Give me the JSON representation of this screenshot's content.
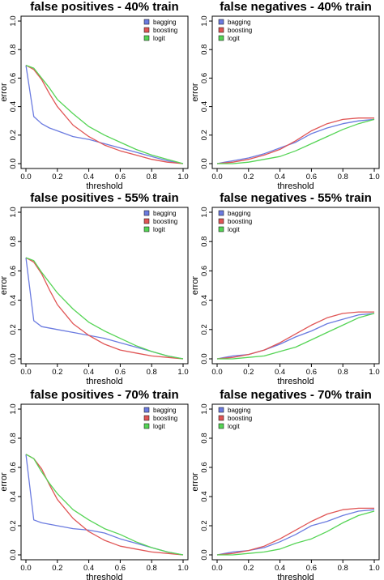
{
  "chart_data": [
    {
      "type": "line",
      "title": "false positives - 40% train",
      "xlabel": "threshold",
      "ylabel": "error",
      "xlim": [
        0,
        1
      ],
      "ylim": [
        0,
        1
      ],
      "xticks": [
        "0.0",
        "0.2",
        "0.4",
        "0.6",
        "0.8",
        "1.0"
      ],
      "yticks": [
        "0.0",
        "0.2",
        "0.4",
        "0.6",
        "0.8",
        "1.0"
      ],
      "legend": "top-right",
      "grid": false,
      "series": [
        {
          "name": "bagging",
          "color": "#6b7be0",
          "x": [
            0.0,
            0.05,
            0.1,
            0.15,
            0.2,
            0.3,
            0.4,
            0.5,
            0.6,
            0.7,
            0.8,
            0.9,
            1.0
          ],
          "y": [
            0.69,
            0.33,
            0.28,
            0.25,
            0.23,
            0.19,
            0.17,
            0.14,
            0.11,
            0.08,
            0.05,
            0.02,
            0.0
          ]
        },
        {
          "name": "boosting",
          "color": "#e05555",
          "x": [
            0.0,
            0.05,
            0.1,
            0.15,
            0.2,
            0.3,
            0.4,
            0.5,
            0.6,
            0.7,
            0.8,
            0.9,
            1.0
          ],
          "y": [
            0.69,
            0.66,
            0.59,
            0.49,
            0.4,
            0.27,
            0.19,
            0.13,
            0.09,
            0.06,
            0.03,
            0.01,
            0.0
          ]
        },
        {
          "name": "logit",
          "color": "#55d455",
          "x": [
            0.0,
            0.05,
            0.1,
            0.15,
            0.2,
            0.3,
            0.4,
            0.5,
            0.6,
            0.7,
            0.8,
            0.9,
            1.0
          ],
          "y": [
            0.69,
            0.67,
            0.6,
            0.53,
            0.45,
            0.35,
            0.26,
            0.2,
            0.15,
            0.1,
            0.06,
            0.03,
            0.0
          ]
        }
      ]
    },
    {
      "type": "line",
      "title": "false negatives - 40% train",
      "xlabel": "threshold",
      "ylabel": "error",
      "xlim": [
        0,
        1
      ],
      "ylim": [
        0,
        1
      ],
      "xticks": [
        "0.0",
        "0.2",
        "0.4",
        "0.6",
        "0.8",
        "1.0"
      ],
      "yticks": [
        "0.0",
        "0.2",
        "0.4",
        "0.6",
        "0.8",
        "1.0"
      ],
      "legend": "top-left",
      "grid": false,
      "series": [
        {
          "name": "bagging",
          "color": "#6b7be0",
          "x": [
            0.0,
            0.05,
            0.1,
            0.2,
            0.3,
            0.35,
            0.4,
            0.5,
            0.6,
            0.7,
            0.8,
            0.9,
            1.0
          ],
          "y": [
            0.0,
            0.01,
            0.02,
            0.04,
            0.07,
            0.09,
            0.11,
            0.15,
            0.21,
            0.25,
            0.28,
            0.3,
            0.31
          ]
        },
        {
          "name": "boosting",
          "color": "#e05555",
          "x": [
            0.0,
            0.1,
            0.2,
            0.3,
            0.4,
            0.5,
            0.6,
            0.7,
            0.8,
            0.9,
            1.0
          ],
          "y": [
            0.0,
            0.01,
            0.03,
            0.06,
            0.1,
            0.16,
            0.23,
            0.28,
            0.31,
            0.32,
            0.32
          ]
        },
        {
          "name": "logit",
          "color": "#55d455",
          "x": [
            0.0,
            0.1,
            0.2,
            0.3,
            0.4,
            0.5,
            0.6,
            0.7,
            0.8,
            0.9,
            1.0
          ],
          "y": [
            0.0,
            0.0,
            0.01,
            0.03,
            0.05,
            0.09,
            0.14,
            0.19,
            0.24,
            0.28,
            0.31
          ]
        }
      ]
    },
    {
      "type": "line",
      "title": "false positives - 55% train",
      "xlabel": "threshold",
      "ylabel": "error",
      "xlim": [
        0,
        1
      ],
      "ylim": [
        0,
        1
      ],
      "xticks": [
        "0.0",
        "0.2",
        "0.4",
        "0.6",
        "0.8",
        "1.0"
      ],
      "yticks": [
        "0.0",
        "0.2",
        "0.4",
        "0.6",
        "0.8",
        "1.0"
      ],
      "legend": "top-right",
      "grid": false,
      "series": [
        {
          "name": "bagging",
          "color": "#6b7be0",
          "x": [
            0.0,
            0.05,
            0.1,
            0.2,
            0.3,
            0.4,
            0.5,
            0.6,
            0.7,
            0.8,
            0.9,
            1.0
          ],
          "y": [
            0.69,
            0.26,
            0.22,
            0.2,
            0.18,
            0.16,
            0.14,
            0.11,
            0.08,
            0.05,
            0.02,
            0.0
          ]
        },
        {
          "name": "boosting",
          "color": "#e05555",
          "x": [
            0.0,
            0.05,
            0.1,
            0.15,
            0.2,
            0.3,
            0.4,
            0.5,
            0.6,
            0.7,
            0.8,
            0.9,
            1.0
          ],
          "y": [
            0.69,
            0.66,
            0.58,
            0.47,
            0.37,
            0.24,
            0.16,
            0.1,
            0.06,
            0.04,
            0.02,
            0.01,
            0.0
          ]
        },
        {
          "name": "logit",
          "color": "#55d455",
          "x": [
            0.0,
            0.05,
            0.1,
            0.15,
            0.2,
            0.3,
            0.4,
            0.5,
            0.6,
            0.7,
            0.8,
            0.9,
            1.0
          ],
          "y": [
            0.69,
            0.67,
            0.59,
            0.52,
            0.45,
            0.34,
            0.25,
            0.19,
            0.14,
            0.09,
            0.05,
            0.02,
            0.0
          ]
        }
      ]
    },
    {
      "type": "line",
      "title": "false negatives - 55% train",
      "xlabel": "threshold",
      "ylabel": "error",
      "xlim": [
        0,
        1
      ],
      "ylim": [
        0,
        1
      ],
      "xticks": [
        "0.0",
        "0.2",
        "0.4",
        "0.6",
        "0.8",
        "1.0"
      ],
      "yticks": [
        "0.0",
        "0.2",
        "0.4",
        "0.6",
        "0.8",
        "1.0"
      ],
      "legend": "top-left",
      "grid": false,
      "series": [
        {
          "name": "bagging",
          "color": "#6b7be0",
          "x": [
            0.0,
            0.05,
            0.1,
            0.2,
            0.3,
            0.4,
            0.5,
            0.6,
            0.7,
            0.8,
            0.9,
            1.0
          ],
          "y": [
            0.0,
            0.01,
            0.02,
            0.03,
            0.06,
            0.1,
            0.15,
            0.19,
            0.24,
            0.27,
            0.3,
            0.31
          ]
        },
        {
          "name": "boosting",
          "color": "#e05555",
          "x": [
            0.0,
            0.1,
            0.2,
            0.3,
            0.4,
            0.5,
            0.6,
            0.7,
            0.8,
            0.9,
            1.0
          ],
          "y": [
            0.0,
            0.01,
            0.03,
            0.06,
            0.11,
            0.17,
            0.23,
            0.28,
            0.31,
            0.32,
            0.32
          ]
        },
        {
          "name": "logit",
          "color": "#55d455",
          "x": [
            0.0,
            0.1,
            0.2,
            0.3,
            0.4,
            0.5,
            0.6,
            0.7,
            0.8,
            0.9,
            1.0
          ],
          "y": [
            0.0,
            0.0,
            0.01,
            0.02,
            0.05,
            0.08,
            0.13,
            0.18,
            0.23,
            0.28,
            0.31
          ]
        }
      ]
    },
    {
      "type": "line",
      "title": "false positives - 70% train",
      "xlabel": "threshold",
      "ylabel": "error",
      "xlim": [
        0,
        1
      ],
      "ylim": [
        0,
        1
      ],
      "xticks": [
        "0.0",
        "0.2",
        "0.4",
        "0.6",
        "0.8",
        "1.0"
      ],
      "yticks": [
        "0.0",
        "0.2",
        "0.4",
        "0.6",
        "0.8",
        "1.0"
      ],
      "legend": "top-right",
      "grid": false,
      "series": [
        {
          "name": "bagging",
          "color": "#6b7be0",
          "x": [
            0.0,
            0.05,
            0.1,
            0.2,
            0.3,
            0.4,
            0.5,
            0.6,
            0.7,
            0.8,
            0.9,
            1.0
          ],
          "y": [
            0.69,
            0.24,
            0.22,
            0.2,
            0.18,
            0.17,
            0.15,
            0.11,
            0.08,
            0.05,
            0.02,
            0.0
          ]
        },
        {
          "name": "boosting",
          "color": "#e05555",
          "x": [
            0.0,
            0.05,
            0.1,
            0.15,
            0.2,
            0.3,
            0.4,
            0.5,
            0.6,
            0.7,
            0.8,
            0.9,
            1.0
          ],
          "y": [
            0.69,
            0.66,
            0.59,
            0.48,
            0.38,
            0.25,
            0.16,
            0.1,
            0.06,
            0.04,
            0.02,
            0.01,
            0.0
          ]
        },
        {
          "name": "logit",
          "color": "#55d455",
          "x": [
            0.0,
            0.05,
            0.1,
            0.15,
            0.2,
            0.3,
            0.4,
            0.5,
            0.6,
            0.7,
            0.8,
            0.9,
            1.0
          ],
          "y": [
            0.69,
            0.66,
            0.57,
            0.49,
            0.42,
            0.31,
            0.24,
            0.18,
            0.14,
            0.09,
            0.05,
            0.02,
            0.0
          ]
        }
      ]
    },
    {
      "type": "line",
      "title": "false negatives - 70% train",
      "xlabel": "threshold",
      "ylabel": "error",
      "xlim": [
        0,
        1
      ],
      "ylim": [
        0,
        1
      ],
      "xticks": [
        "0.0",
        "0.2",
        "0.4",
        "0.6",
        "0.8",
        "1.0"
      ],
      "yticks": [
        "0.0",
        "0.2",
        "0.4",
        "0.6",
        "0.8",
        "1.0"
      ],
      "legend": "top-left",
      "grid": false,
      "series": [
        {
          "name": "bagging",
          "color": "#6b7be0",
          "x": [
            0.0,
            0.05,
            0.1,
            0.2,
            0.3,
            0.4,
            0.5,
            0.6,
            0.7,
            0.8,
            0.9,
            1.0
          ],
          "y": [
            0.0,
            0.01,
            0.02,
            0.03,
            0.05,
            0.09,
            0.14,
            0.2,
            0.23,
            0.27,
            0.3,
            0.31
          ]
        },
        {
          "name": "boosting",
          "color": "#e05555",
          "x": [
            0.0,
            0.1,
            0.2,
            0.3,
            0.4,
            0.5,
            0.6,
            0.7,
            0.8,
            0.9,
            1.0
          ],
          "y": [
            0.0,
            0.01,
            0.03,
            0.06,
            0.11,
            0.17,
            0.23,
            0.28,
            0.31,
            0.32,
            0.32
          ]
        },
        {
          "name": "logit",
          "color": "#55d455",
          "x": [
            0.0,
            0.1,
            0.2,
            0.3,
            0.4,
            0.5,
            0.6,
            0.7,
            0.8,
            0.9,
            1.0
          ],
          "y": [
            0.0,
            0.0,
            0.01,
            0.02,
            0.04,
            0.08,
            0.11,
            0.16,
            0.22,
            0.27,
            0.3
          ]
        }
      ]
    }
  ]
}
